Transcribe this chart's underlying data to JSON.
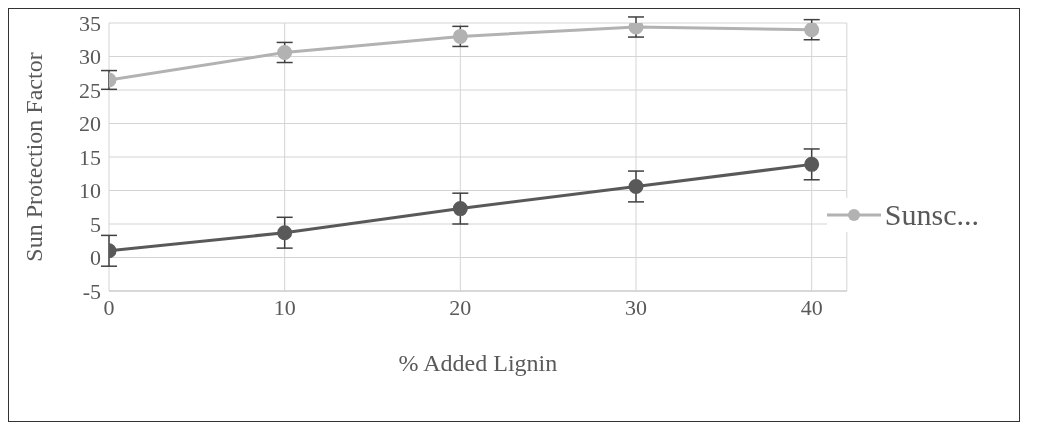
{
  "chart_data": {
    "type": "line",
    "xlabel": "% Added Lignin",
    "ylabel": "Sun Protection Factor",
    "x": [
      0,
      10,
      20,
      30,
      40
    ],
    "series": [
      {
        "name": "Sunsc...",
        "color": "#b2b2b2",
        "values": [
          26.5,
          30.6,
          33.0,
          34.4,
          34.0
        ],
        "errors": [
          1.4,
          1.5,
          1.5,
          1.5,
          1.5
        ]
      },
      {
        "color": "#595959",
        "values": [
          1.0,
          3.7,
          7.3,
          10.6,
          13.9
        ],
        "errors": [
          2.3,
          2.3,
          2.3,
          2.3,
          2.3
        ]
      }
    ],
    "xlim": [
      0,
      42
    ],
    "xticks": [
      0,
      10,
      20,
      30,
      40
    ],
    "ylim": [
      -5,
      35
    ],
    "yticks": [
      -5,
      0,
      5,
      10,
      15,
      20,
      25,
      30,
      35
    ],
    "grid": true,
    "legend": "right",
    "marker": "circle",
    "line_style": "solid"
  }
}
